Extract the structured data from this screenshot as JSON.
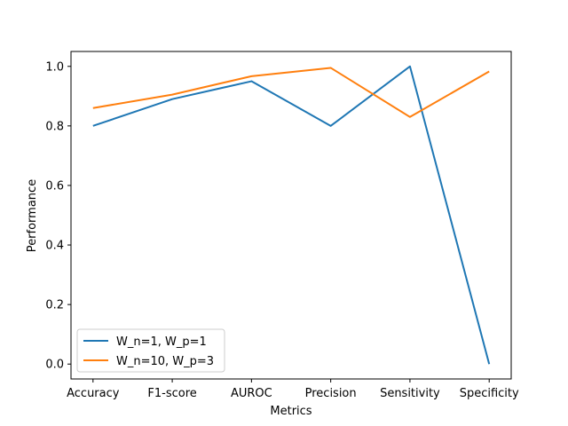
{
  "chart_data": {
    "type": "line",
    "title": "",
    "xlabel": "Metrics",
    "ylabel": "Performance",
    "categories": [
      "Accuracy",
      "F1-score",
      "AUROC",
      "Precision",
      "Sensitivity",
      "Specificity"
    ],
    "ylim": [
      -0.05,
      1.05
    ],
    "yticks": [
      0.0,
      0.2,
      0.4,
      0.6,
      0.8,
      1.0
    ],
    "ytick_labels": [
      "0.0",
      "0.2",
      "0.4",
      "0.6",
      "0.8",
      "1.0"
    ],
    "grid": false,
    "legend_position": "lower-left",
    "series": [
      {
        "name": "W_n=1, W_p=1",
        "color": "#1f77b4",
        "values": [
          0.8,
          0.89,
          0.95,
          0.8,
          1.0,
          0.0
        ]
      },
      {
        "name": "W_n=10, W_p=3",
        "color": "#ff7f0e",
        "values": [
          0.86,
          0.905,
          0.967,
          0.995,
          0.83,
          0.983
        ]
      }
    ]
  }
}
